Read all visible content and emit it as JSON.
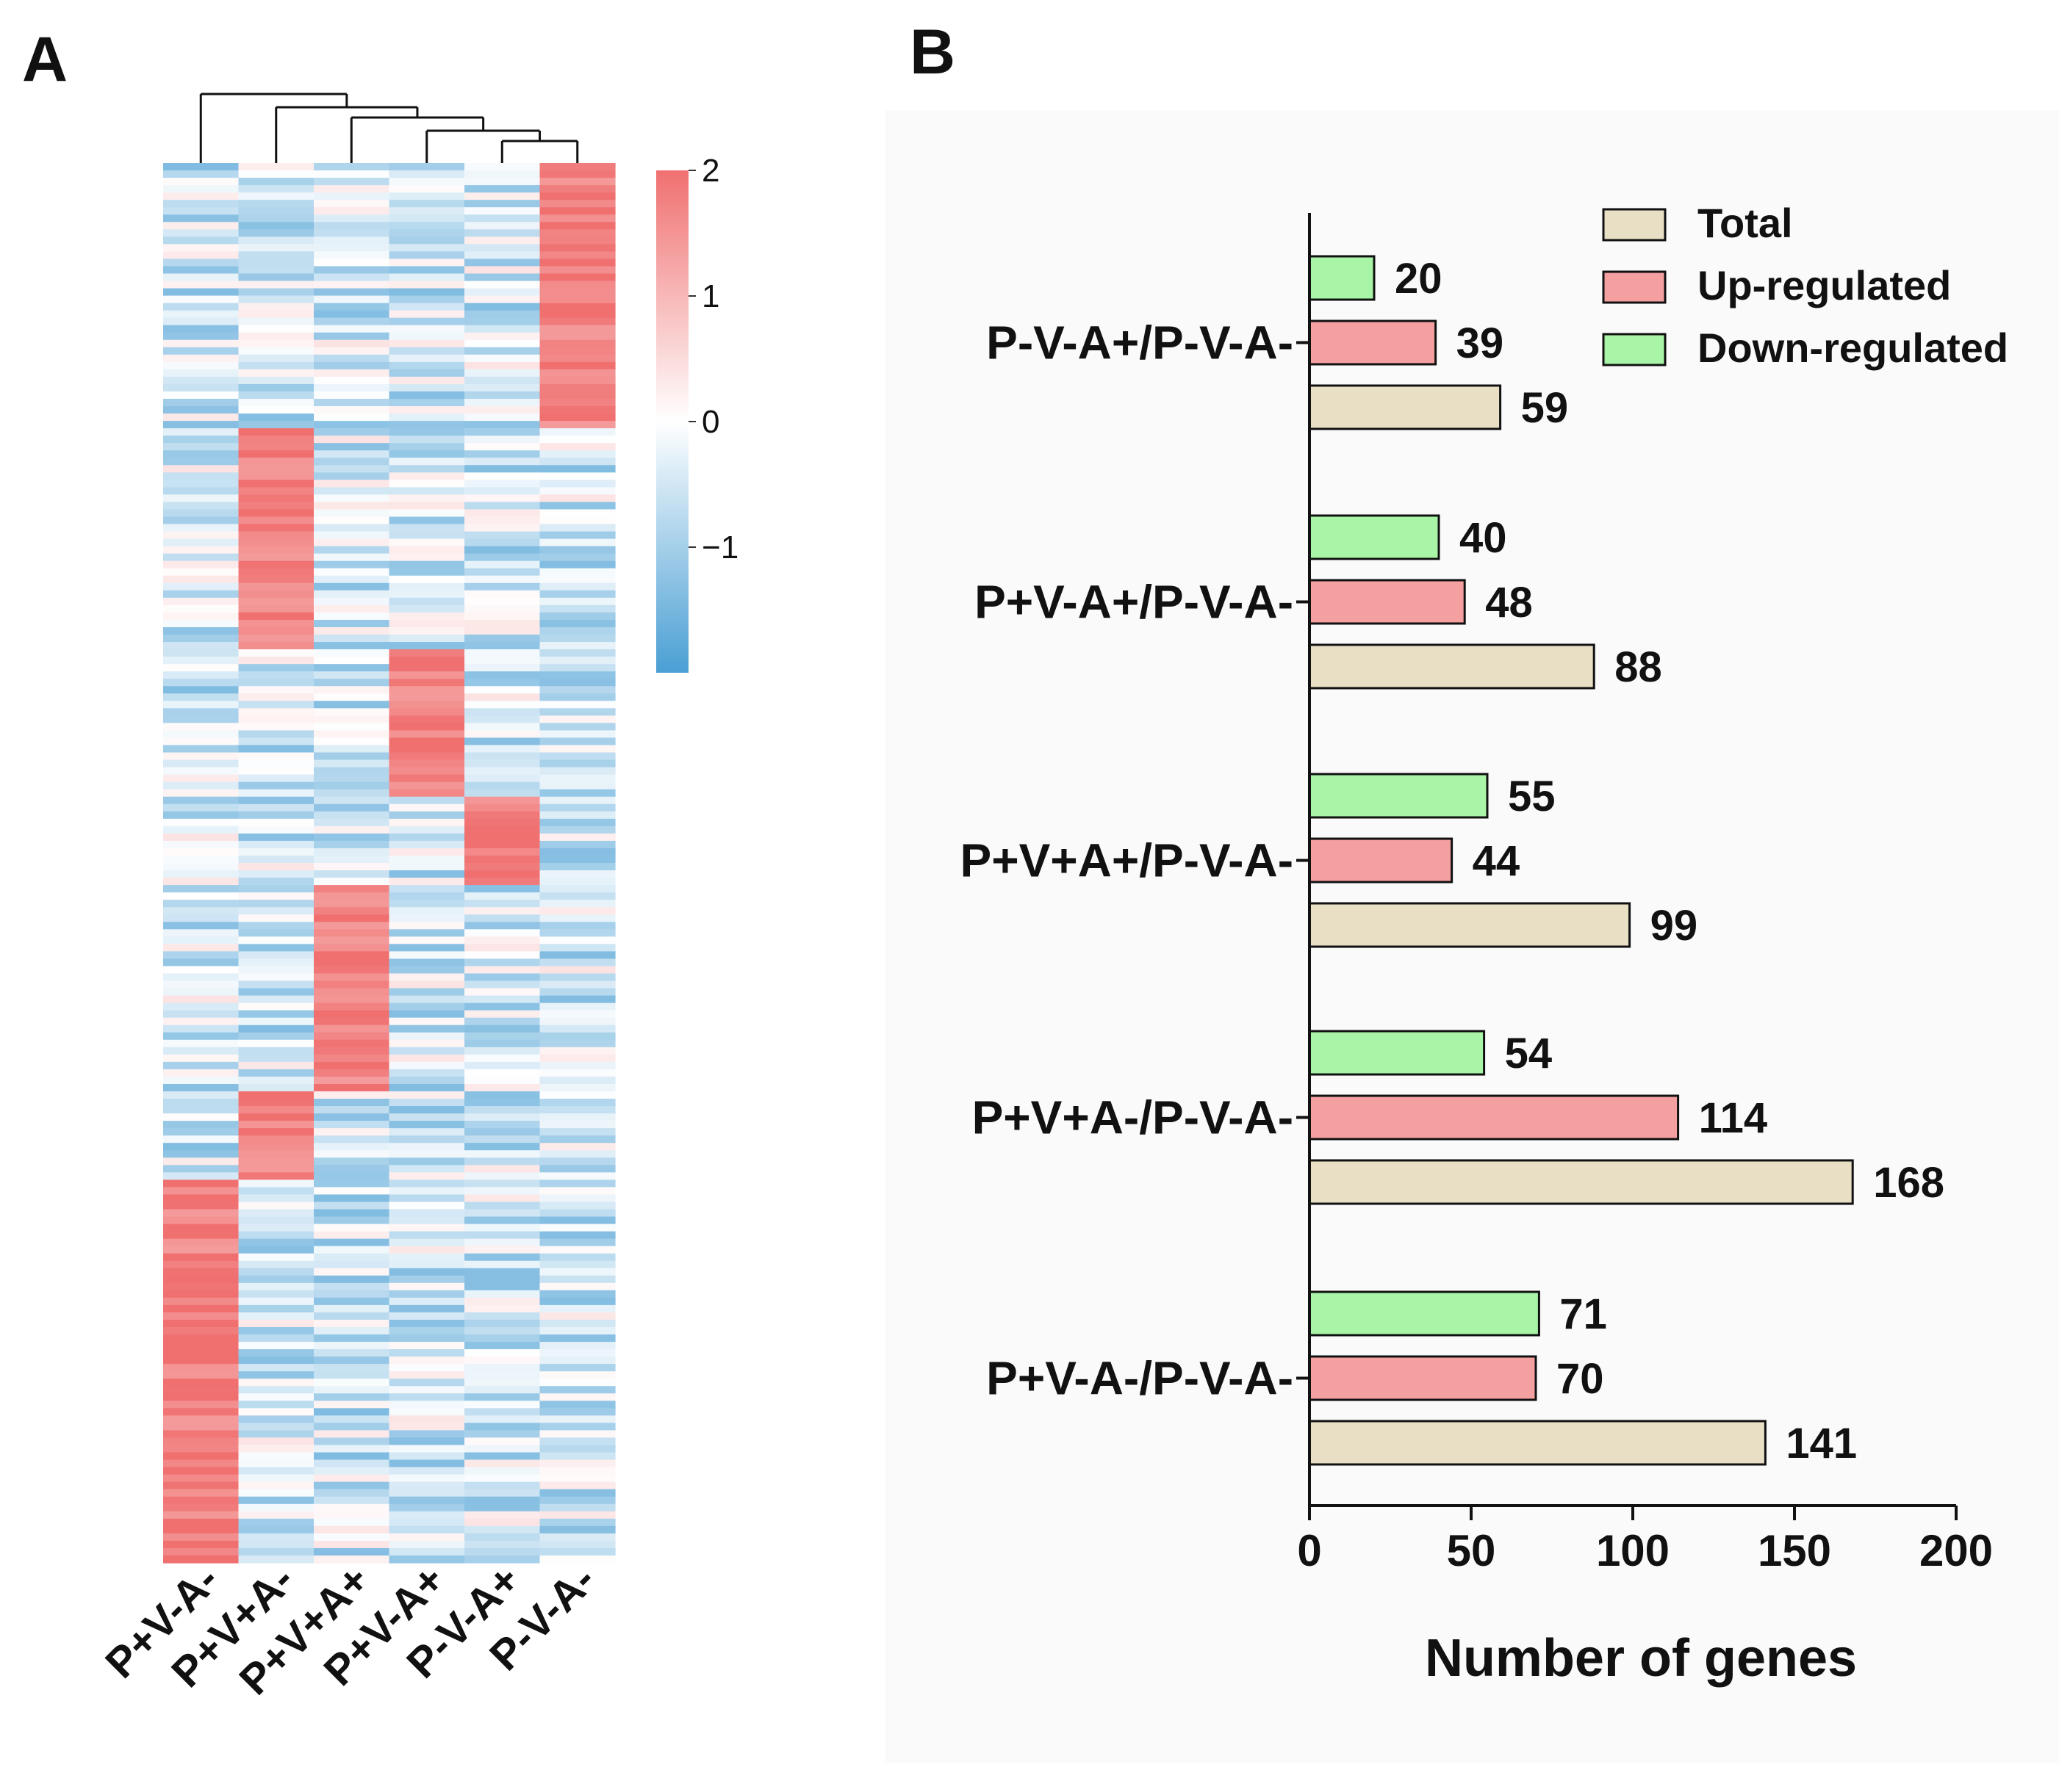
{
  "panel_a": {
    "label": "A",
    "columns": [
      "P+V-A-",
      "P+V+A-",
      "P+V+A+",
      "P+V-A+",
      "P-V-A+",
      "P-V-A-"
    ],
    "colorbar": {
      "ticks": [
        "2",
        "1",
        "0",
        "−1"
      ],
      "tick_values": [
        2,
        1,
        0,
        -1
      ],
      "range": [
        -2,
        2
      ]
    },
    "colors": {
      "high": "#f07070",
      "mid": "#ffffff",
      "low": "#4a9fd4"
    }
  },
  "panel_b": {
    "label": "B"
  },
  "chart_data": [
    {
      "type": "heatmap",
      "title": "",
      "columns": [
        "P+V-A-",
        "P+V+A-",
        "P+V+A+",
        "P+V-A+",
        "P-V-A+",
        "P-V-A-"
      ],
      "value_range": [
        -2,
        2
      ],
      "colorbar_ticks": [
        2,
        1,
        0,
        -1
      ],
      "row_blocks": [
        {
          "rows": 36,
          "high_column": "P-V-A-"
        },
        {
          "rows": 30,
          "high_column": "P+V+A-"
        },
        {
          "rows": 20,
          "high_column": "P+V-A+"
        },
        {
          "rows": 12,
          "high_column": "P-V-A+"
        },
        {
          "rows": 28,
          "high_column": "P+V+A+"
        },
        {
          "rows": 12,
          "high_column": "P+V+A-"
        },
        {
          "rows": 52,
          "high_column": "P+V-A-"
        }
      ],
      "dendrogram": "column clustering"
    },
    {
      "type": "bar",
      "orientation": "horizontal",
      "categories": [
        "P-V-A+/P-V-A-",
        "P+V-A+/P-V-A-",
        "P+V+A+/P-V-A-",
        "P+V+A-/P-V-A-",
        "P+V-A-/P-V-A-"
      ],
      "series": [
        {
          "name": "Total",
          "color": "#e8dfc5",
          "values": [
            59,
            88,
            99,
            168,
            141
          ]
        },
        {
          "name": "Up-regulated",
          "color": "#f5a0a0",
          "values": [
            39,
            48,
            44,
            114,
            70
          ]
        },
        {
          "name": "Down-regulated",
          "color": "#a8f5a8",
          "values": [
            20,
            40,
            55,
            54,
            71
          ]
        }
      ],
      "xlabel": "Number of genes",
      "ylabel": "",
      "xlim": [
        0,
        200
      ],
      "xticks": [
        0,
        50,
        100,
        150,
        200
      ],
      "legend_position": "top-right"
    }
  ]
}
